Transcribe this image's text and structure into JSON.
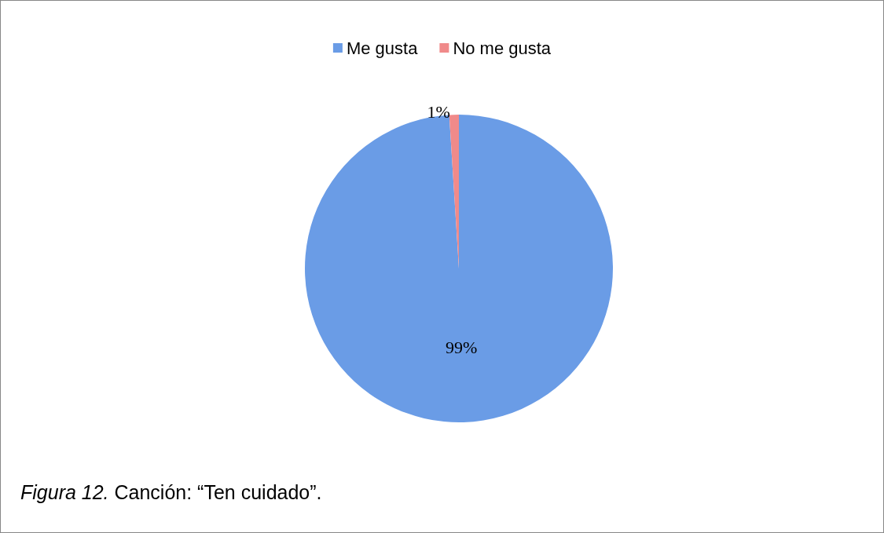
{
  "chart_data": {
    "type": "pie",
    "categories": [
      "Me gusta",
      "No me gusta"
    ],
    "values": [
      99,
      1
    ],
    "colors": [
      "#6a9ce6",
      "#f08a8a"
    ],
    "value_labels": [
      "99%",
      "1%"
    ],
    "legend": "top",
    "annotations": [
      "Figura 12. Canción: “Ten cuidado”."
    ]
  }
}
